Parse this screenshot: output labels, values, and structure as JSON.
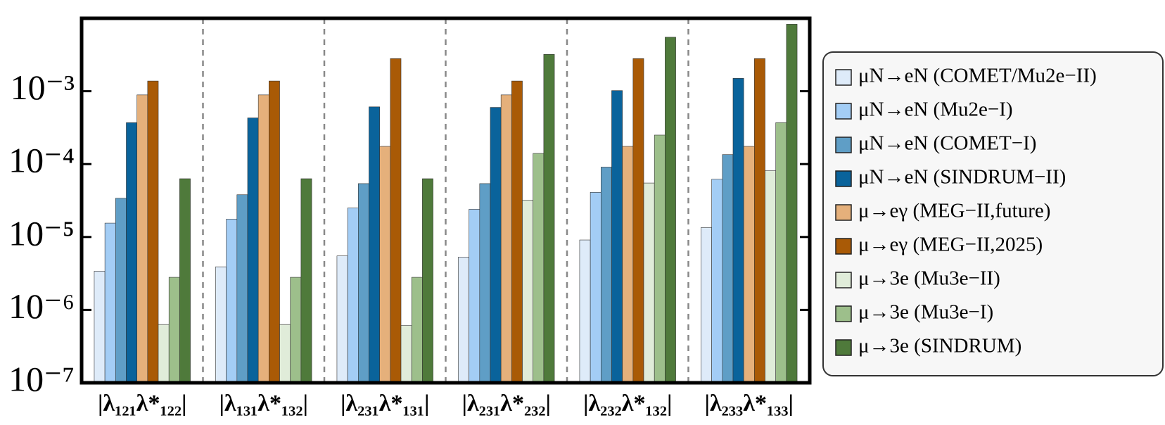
{
  "chart_data": {
    "type": "bar",
    "log_y": true,
    "legend": "right",
    "categories": [
      "|λ₁₂₁λ*₁₂₂|",
      "|λ₁₃₁λ*₁₃₂|",
      "|λ₂₃₁λ*₁₃₁|",
      "|λ₂₃₁λ*₂₃₂|",
      "|λ₂₃₂λ*₁₃₂|",
      "|λ₂₃₃λ*₁₃₃|"
    ],
    "series": [
      {
        "name": "μN→eN (COMET/Mu2e−II)",
        "color": "#deebf9",
        "values": [
          3.4e-06,
          3.9e-06,
          5.5e-06,
          5.3e-06,
          9.1e-06,
          1.35e-05
        ]
      },
      {
        "name": "μN→eN (Mu2e−I)",
        "color": "#a3cdf5",
        "values": [
          1.55e-05,
          1.76e-05,
          2.5e-05,
          2.4e-05,
          4.1e-05,
          6.2e-05
        ]
      },
      {
        "name": "μN→eN (COMET−I)",
        "color": "#5f9ec6",
        "values": [
          3.4e-05,
          3.8e-05,
          5.4e-05,
          5.4e-05,
          9.1e-05,
          0.000135
        ]
      },
      {
        "name": "μN→eN (SINDRUM−II)",
        "color": "#0a639b",
        "values": [
          0.00037,
          0.00043,
          0.00061,
          0.0006,
          0.00102,
          0.0015
        ]
      },
      {
        "name": "μ→eγ (MEG−II,future)",
        "color": "#e5b07b",
        "values": [
          0.00089,
          0.00089,
          0.000175,
          0.00089,
          0.000175,
          0.000175
        ]
      },
      {
        "name": "μ→eγ (MEG−II,2025)",
        "color": "#a95a06",
        "values": [
          0.00138,
          0.00138,
          0.0028,
          0.00138,
          0.0028,
          0.0028
        ]
      },
      {
        "name": "μ→3e (Mu3e−II)",
        "color": "#e0ecd9",
        "values": [
          6.3e-07,
          6.3e-07,
          6.1e-07,
          3.2e-05,
          5.5e-05,
          8.1e-05
        ]
      },
      {
        "name": "μ→3e (Mu3e−I)",
        "color": "#9dbf8b",
        "values": [
          2.8e-06,
          2.8e-06,
          2.8e-06,
          0.00014,
          0.00025,
          0.00037
        ]
      },
      {
        "name": "μ→3e (SINDRUM)",
        "color": "#4f7a3b",
        "values": [
          6.3e-05,
          6.3e-05,
          6.3e-05,
          0.0032,
          0.0055,
          0.0083
        ]
      }
    ],
    "ylim": [
      1e-07,
      0.01
    ],
    "yticks": [
      {
        "value": 1e-07,
        "label": "10⁻⁷"
      },
      {
        "value": 1e-06,
        "label": "10⁻⁶"
      },
      {
        "value": 1e-05,
        "label": "10⁻⁵"
      },
      {
        "value": 0.0001,
        "label": "10⁻⁴"
      },
      {
        "value": 0.001,
        "label": "10⁻³"
      }
    ]
  }
}
